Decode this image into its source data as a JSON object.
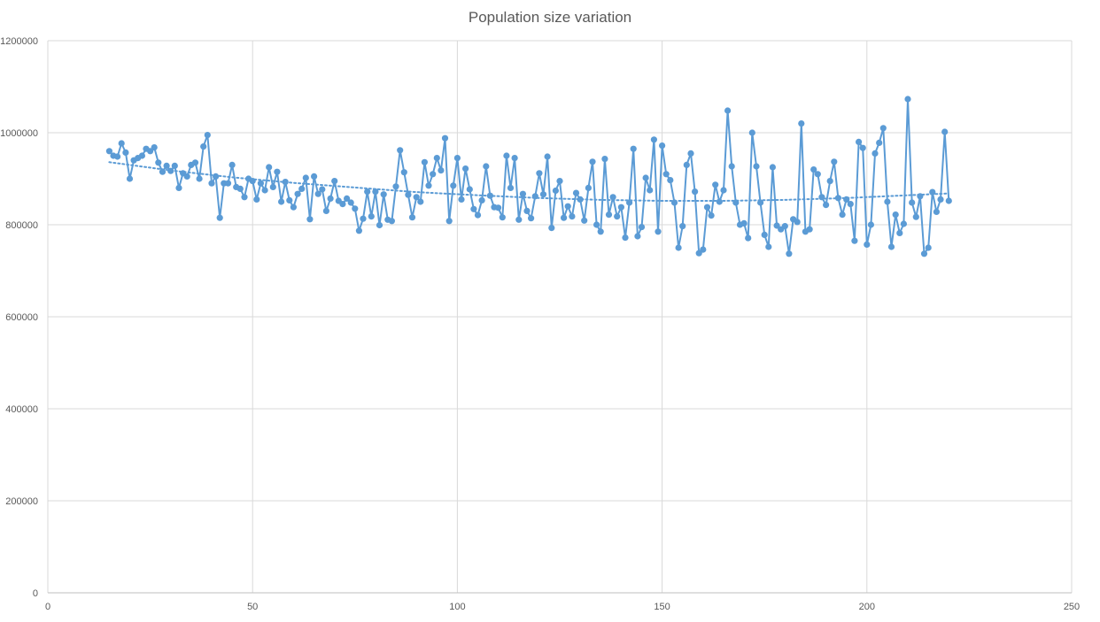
{
  "chart_data": {
    "type": "line",
    "title": "Population size variation",
    "xlabel": "",
    "ylabel": "",
    "xlim": [
      0,
      250
    ],
    "ylim": [
      0,
      1200000
    ],
    "x_ticks": [
      0,
      50,
      100,
      150,
      200,
      250
    ],
    "y_ticks": [
      0,
      200000,
      400000,
      600000,
      800000,
      1000000,
      1200000
    ],
    "x_tick_labels": [
      "0",
      "50",
      "100",
      "150",
      "200",
      "250"
    ],
    "y_tick_labels": [
      "0",
      "200000",
      "400000",
      "600000",
      "800000",
      "1000000",
      "1200000"
    ],
    "grid": true,
    "legend": "none",
    "colors": {
      "series": "#5B9BD5",
      "grid": "#D9D9D9",
      "text": "#595959"
    },
    "series": [
      {
        "markers": true,
        "trendline": "polynomial",
        "x": [
          15,
          16,
          17,
          18,
          19,
          20,
          21,
          22,
          23,
          24,
          25,
          26,
          27,
          28,
          29,
          30,
          31,
          32,
          33,
          34,
          35,
          36,
          37,
          38,
          39,
          40,
          41,
          42,
          43,
          44,
          45,
          46,
          47,
          48,
          49,
          50,
          51,
          52,
          53,
          54,
          55,
          56,
          57,
          58,
          59,
          60,
          61,
          62,
          63,
          64,
          65,
          66,
          67,
          68,
          69,
          70,
          71,
          72,
          73,
          74,
          75,
          76,
          77,
          78,
          79,
          80,
          81,
          82,
          83,
          84,
          85,
          86,
          87,
          88,
          89,
          90,
          91,
          92,
          93,
          94,
          95,
          96,
          97,
          98,
          99,
          100,
          101,
          102,
          103,
          104,
          105,
          106,
          107,
          108,
          109,
          110,
          111,
          112,
          113,
          114,
          115,
          116,
          117,
          118,
          119,
          120,
          121,
          122,
          123,
          124,
          125,
          126,
          127,
          128,
          129,
          130,
          131,
          132,
          133,
          134,
          135,
          136,
          137,
          138,
          139,
          140,
          141,
          142,
          143,
          144,
          145,
          146,
          147,
          148,
          149,
          150,
          151,
          152,
          153,
          154,
          155,
          156,
          157,
          158,
          159,
          160,
          161,
          162,
          163,
          164,
          165,
          166,
          167,
          168,
          169,
          170,
          171,
          172,
          173,
          174,
          175,
          176,
          177,
          178,
          179,
          180,
          181,
          182,
          183,
          184,
          185,
          186,
          187,
          188,
          189,
          190,
          191,
          192,
          193,
          194,
          195,
          196,
          197,
          198,
          199,
          200,
          201,
          202,
          203,
          204,
          205,
          206,
          207,
          208,
          209,
          210,
          211,
          212,
          213,
          214,
          215,
          216,
          217,
          218,
          219,
          220
        ],
        "y": [
          960000,
          950000,
          948000,
          977000,
          957000,
          900000,
          940000,
          945000,
          950000,
          965000,
          960000,
          968000,
          935000,
          915000,
          928000,
          917000,
          928000,
          880000,
          912000,
          905000,
          930000,
          935000,
          900000,
          970000,
          995000,
          890000,
          905000,
          815000,
          890000,
          890000,
          930000,
          882000,
          878000,
          860000,
          900000,
          895000,
          855000,
          890000,
          875000,
          925000,
          882000,
          915000,
          850000,
          893000,
          853000,
          838000,
          867000,
          878000,
          902000,
          812000,
          905000,
          867000,
          877000,
          830000,
          857000,
          895000,
          852000,
          845000,
          857000,
          848000,
          835000,
          787000,
          813000,
          872000,
          818000,
          872000,
          799000,
          866000,
          811000,
          808000,
          883000,
          962000,
          914000,
          865000,
          816000,
          860000,
          850000,
          936000,
          885000,
          910000,
          945000,
          918000,
          988000,
          808000,
          885000,
          945000,
          855000,
          922000,
          877000,
          834000,
          821000,
          853000,
          927000,
          863000,
          838000,
          837000,
          816000,
          950000,
          880000,
          945000,
          811000,
          867000,
          830000,
          814000,
          862000,
          912000,
          866000,
          948000,
          793000,
          874000,
          895000,
          815000,
          840000,
          818000,
          869000,
          855000,
          809000,
          880000,
          937000,
          800000,
          785000,
          943000,
          822000,
          860000,
          818000,
          838000,
          772000,
          848000,
          965000,
          775000,
          795000,
          902000,
          875000,
          985000,
          785000,
          972000,
          910000,
          897000,
          848000,
          750000,
          797000,
          930000,
          955000,
          872000,
          738000,
          746000,
          838000,
          820000,
          887000,
          850000,
          875000,
          1048000,
          927000,
          848000,
          800000,
          803000,
          771000,
          1000000,
          927000,
          848000,
          778000,
          752000,
          925000,
          798000,
          790000,
          797000,
          737000,
          812000,
          806000,
          1020000,
          785000,
          790000,
          920000,
          910000,
          860000,
          843000,
          895000,
          937000,
          858000,
          822000,
          855000,
          845000,
          765000,
          980000,
          967000,
          757000,
          800000,
          955000,
          978000,
          1010000,
          850000,
          752000,
          822000,
          782000,
          802000,
          1073000,
          848000,
          817000,
          862000,
          737000,
          750000,
          871000,
          828000,
          855000,
          1002000,
          852000
        ],
        "trend_x": [
          15,
          30,
          45,
          60,
          75,
          90,
          105,
          120,
          135,
          150,
          165,
          180,
          195,
          210,
          220
        ],
        "trend_y": [
          936000,
          918000,
          903000,
          891000,
          881000,
          871000,
          864000,
          858000,
          854000,
          852000,
          852000,
          854000,
          858000,
          864000,
          868000
        ]
      }
    ]
  }
}
